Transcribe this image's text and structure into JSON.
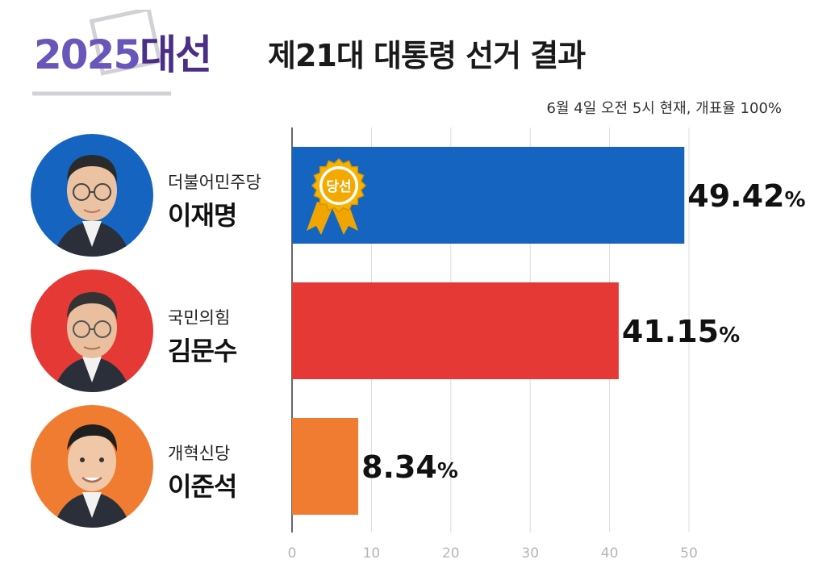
{
  "header": {
    "brand_year": "2025",
    "brand_word": "대선",
    "title": "제21대 대통령 선거 결과",
    "subtitle": "6월 4일 오전 5시 현재, 개표율 100%"
  },
  "winner_badge": "당선",
  "candidates": [
    {
      "party": "더불어민주당",
      "name": "이재명",
      "value_label": "49.42",
      "color": "#1565c0"
    },
    {
      "party": "국민의힘",
      "name": "김문수",
      "value_label": "41.15",
      "color": "#e53935"
    },
    {
      "party": "개혁신당",
      "name": "이준석",
      "value_label": "8.34",
      "color": "#f07c32"
    }
  ],
  "percent_sign": "%",
  "chart_data": {
    "type": "bar",
    "orientation": "horizontal",
    "categories": [
      "이재명",
      "김문수",
      "이준석"
    ],
    "values": [
      49.42,
      41.15,
      8.34
    ],
    "colors": [
      "#1565c0",
      "#e53935",
      "#f07c32"
    ],
    "xlim": [
      0,
      50
    ],
    "xticks": [
      0,
      10,
      20,
      30,
      40,
      50
    ],
    "grid": true,
    "title": "제21대 대통령 선거 결과"
  }
}
